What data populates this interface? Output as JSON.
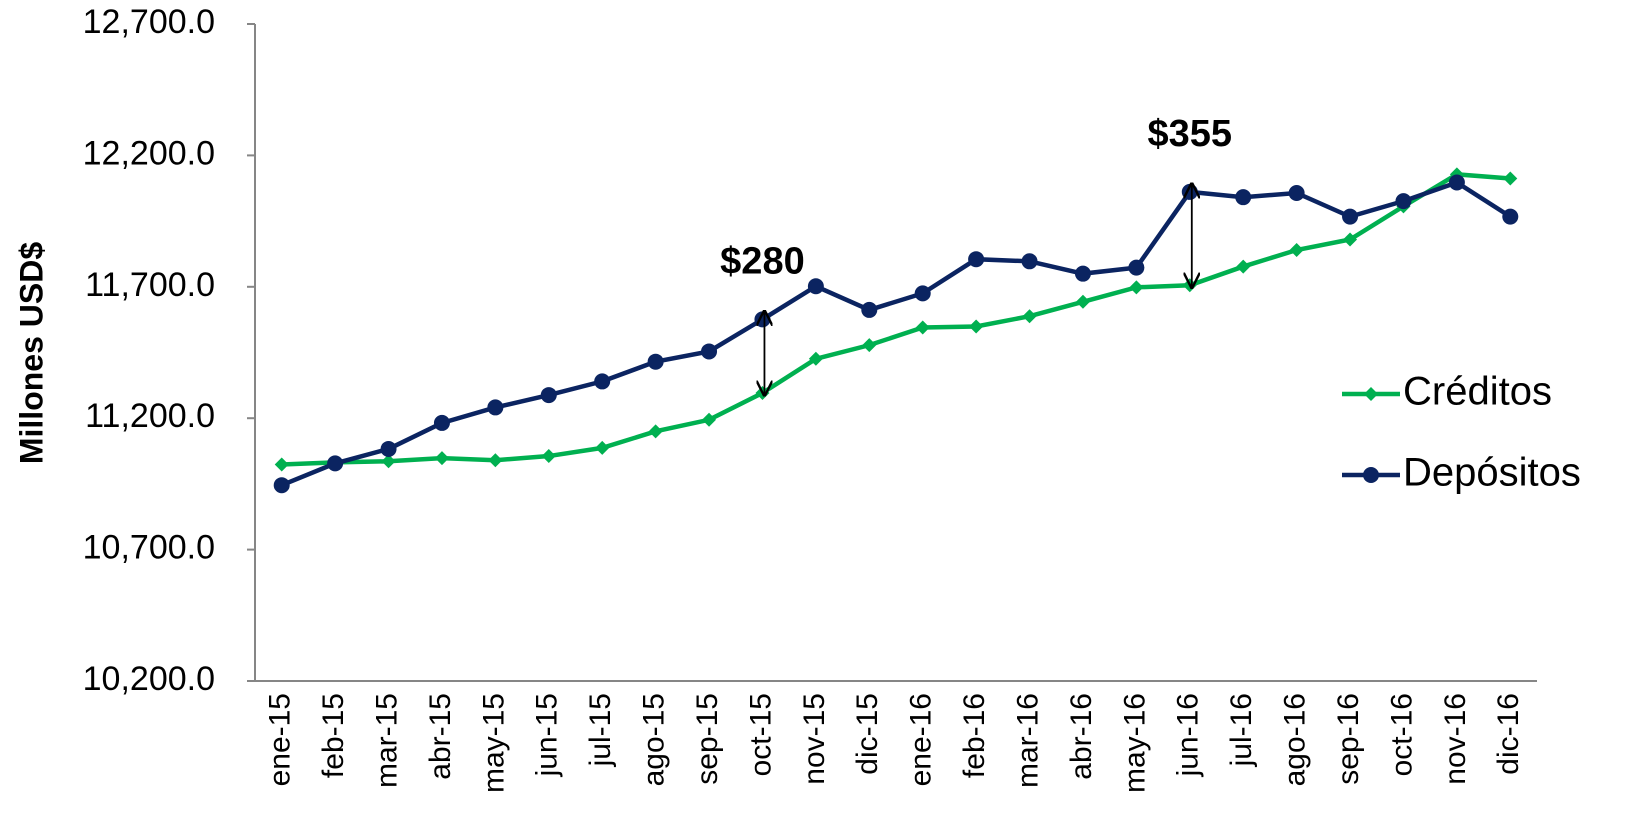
{
  "chart_data": {
    "type": "line",
    "y_label": "Millones USD$",
    "categories": [
      "ene-15",
      "feb-15",
      "mar-15",
      "abr-15",
      "may-15",
      "jun-15",
      "jul-15",
      "ago-15",
      "sep-15",
      "oct-15",
      "nov-15",
      "dic-15",
      "ene-16",
      "feb-16",
      "mar-16",
      "abr-16",
      "may-16",
      "jun-16",
      "jul-16",
      "ago-16",
      "sep-16",
      "oct-16",
      "nov-16",
      "dic-16"
    ],
    "series": [
      {
        "name": "Créditos",
        "color": "#00b050",
        "marker": "diamond",
        "values": [
          11024,
          11032,
          11036,
          11048,
          11040,
          11056,
          11087,
          11150,
          11194,
          11296,
          11426,
          11478,
          11545,
          11549,
          11588,
          11643,
          11698,
          11706,
          11777,
          11840,
          11880,
          12006,
          12128,
          12112
        ]
      },
      {
        "name": "Depósitos",
        "color": "#0b2461",
        "marker": "circle",
        "values": [
          10945,
          11028,
          11083,
          11182,
          11241,
          11288,
          11340,
          11415,
          11454,
          11576,
          11702,
          11612,
          11675,
          11805,
          11797,
          11750,
          11773,
          12061,
          12041,
          12057,
          11967,
          12026,
          12097,
          11967
        ]
      }
    ],
    "annotations": [
      "$280",
      "$355"
    ],
    "ylim": [
      10200,
      12700
    ],
    "yticks": [
      {
        "value": 10200,
        "label": "10,200.0"
      },
      {
        "value": 10700,
        "label": "10,700.0"
      },
      {
        "value": 11200,
        "label": "11,200.0"
      },
      {
        "value": 11700,
        "label": "11,700.0"
      },
      {
        "value": 12200,
        "label": "12,200.0"
      },
      {
        "value": 12700,
        "label": "12,700.0"
      }
    ],
    "grid": false,
    "legend": "right"
  }
}
